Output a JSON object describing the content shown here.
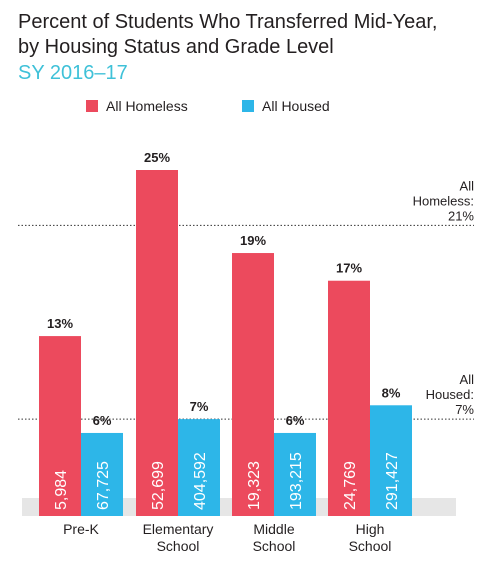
{
  "header": {
    "title_line1": "Percent of Students Who Transferred Mid-Year,",
    "title_line2": "by Housing Status and Grade Level",
    "subtitle": "SY 2016–17"
  },
  "colors": {
    "homeless": "#ec4a5d",
    "housed": "#2db6e8",
    "baseline": "#e6e6e6",
    "text": "#231f20"
  },
  "chart_data": {
    "type": "bar",
    "title": "Percent of Students Who Transferred Mid-Year, by Housing Status and Grade Level",
    "subtitle": "SY 2016–17",
    "legend_position": "top",
    "categories": [
      [
        "Pre-K"
      ],
      [
        "Elementary",
        "School"
      ],
      [
        "Middle",
        "School"
      ],
      [
        "High",
        "School"
      ]
    ],
    "series": [
      {
        "name": "All Homeless",
        "values": [
          13,
          25,
          19,
          17
        ],
        "value_labels": [
          "13%",
          "25%",
          "19%",
          "17%"
        ],
        "counts": [
          "5,984",
          "52,699",
          "19,323",
          "24,769"
        ]
      },
      {
        "name": "All Housed",
        "values": [
          6,
          7,
          6,
          8
        ],
        "value_labels": [
          "6%",
          "7%",
          "6%",
          "8%"
        ],
        "counts": [
          "67,725",
          "404,592",
          "193,215",
          "291,427"
        ]
      }
    ],
    "reference_lines": [
      {
        "value": 21,
        "label_lines": [
          "All",
          "Homeless:",
          "21%"
        ]
      },
      {
        "value": 7,
        "label_lines": [
          "All",
          "Housed:",
          "7%"
        ]
      }
    ],
    "ylim": [
      0,
      25
    ],
    "grid": false
  }
}
